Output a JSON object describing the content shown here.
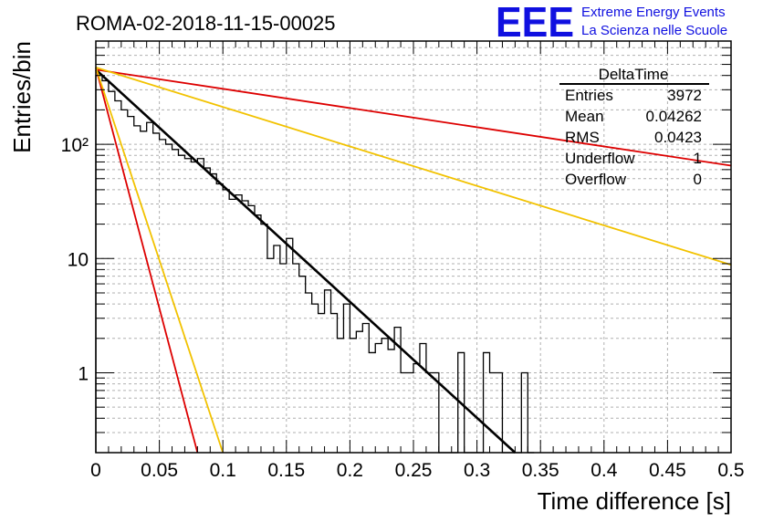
{
  "header": {
    "run_title": "ROMA-02-2018-11-15-00025",
    "logo_text": "EEE",
    "logo_line1": "Extreme Energy Events",
    "logo_line2": "La Scienza nelle Scuole",
    "logo_color": "#1010e0"
  },
  "stats_box": {
    "title": "DeltaTime",
    "rows": [
      {
        "label": "Entries",
        "value": "3972"
      },
      {
        "label": "Mean",
        "value": "0.04262"
      },
      {
        "label": "RMS",
        "value": "0.0423"
      },
      {
        "label": "Underflow",
        "value": "1"
      },
      {
        "label": "Overflow",
        "value": "0"
      }
    ]
  },
  "chart_data": {
    "type": "line",
    "xlabel": "Time difference [s]",
    "ylabel": "Entries/bin",
    "xlim": [
      0,
      0.5
    ],
    "ylim": [
      0.2,
      800
    ],
    "yscale": "log",
    "grid": true,
    "x_ticks": [
      "0",
      "0.05",
      "0.1",
      "0.15",
      "0.2",
      "0.25",
      "0.3",
      "0.35",
      "0.4",
      "0.45",
      "0.5"
    ],
    "y_ticks": [
      {
        "value": 1,
        "label": "1"
      },
      {
        "value": 10,
        "label": "10"
      },
      {
        "value": 100,
        "label": "10²"
      }
    ],
    "histogram": {
      "bin_width": 0.005,
      "values": [
        400,
        360,
        290,
        240,
        200,
        175,
        145,
        130,
        155,
        125,
        110,
        100,
        90,
        80,
        75,
        70,
        75,
        62,
        55,
        45,
        40,
        33,
        36,
        32,
        29,
        24,
        20,
        10,
        13,
        9,
        15,
        9,
        7,
        5,
        4,
        3.3,
        5.3,
        3.3,
        2,
        4,
        2,
        2.3,
        2.7,
        1.5,
        1.8,
        2,
        1.6,
        2.5,
        1,
        1,
        1.2,
        1.8,
        1,
        1,
        0,
        0,
        0.2,
        1.5,
        0.2,
        0.2,
        0.2,
        1.5,
        1,
        1,
        0.2,
        0.2,
        0.2,
        1,
        0.2
      ]
    },
    "fit_lines": [
      {
        "color": "#000000",
        "width": 2.6,
        "x": [
          0.0,
          0.33
        ],
        "y": [
          450,
          0.18
        ]
      },
      {
        "color": "#dd0000",
        "width": 1.8,
        "x": [
          0.0,
          0.5
        ],
        "y": [
          450,
          65
        ]
      },
      {
        "color": "#f2c200",
        "width": 1.8,
        "x": [
          0.0,
          0.5
        ],
        "y": [
          470,
          8.8
        ]
      },
      {
        "color": "#dd0000",
        "width": 1.8,
        "x": [
          0.0,
          0.08
        ],
        "y": [
          470,
          0.2
        ]
      },
      {
        "color": "#f2c200",
        "width": 1.8,
        "x": [
          0.0,
          0.1
        ],
        "y": [
          470,
          0.2
        ]
      }
    ]
  }
}
